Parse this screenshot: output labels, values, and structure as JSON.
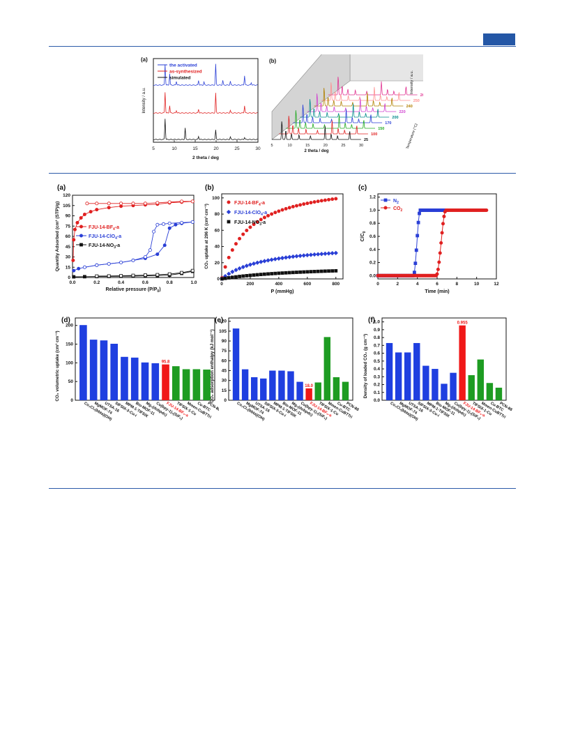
{
  "header": {
    "tag_color": "#2457a6"
  },
  "fig1": {
    "panel_a": {
      "label": "(a)",
      "type": "line",
      "xlabel": "2 theta /  deg",
      "ylabel": "Intensity / a.u.",
      "xlim": [
        5,
        30
      ],
      "xticks": [
        "5",
        "10",
        "15",
        "20",
        "25",
        "30"
      ],
      "series": [
        {
          "name": "the activated",
          "color": "#2a3fd6",
          "peaks": [
            [
              7.8,
              1.0
            ],
            [
              8.9,
              0.55
            ],
            [
              10.5,
              0.18
            ],
            [
              15.8,
              0.22
            ],
            [
              17.1,
              0.15
            ],
            [
              19.9,
              1.0
            ],
            [
              21.6,
              0.22
            ],
            [
              23.4,
              0.18
            ],
            [
              26.8,
              0.45
            ],
            [
              28.4,
              0.12
            ]
          ]
        },
        {
          "name": "as-synthesized",
          "color": "#e02020",
          "peaks": [
            [
              7.8,
              1.0
            ],
            [
              8.9,
              0.35
            ],
            [
              10.5,
              0.12
            ],
            [
              15.8,
              0.18
            ],
            [
              19.9,
              0.95
            ],
            [
              23.4,
              0.12
            ],
            [
              26.8,
              0.35
            ]
          ]
        },
        {
          "name": "simulated",
          "color": "#111111",
          "peaks": [
            [
              7.8,
              1.0
            ],
            [
              12.6,
              0.55
            ],
            [
              15.8,
              0.15
            ],
            [
              19.9,
              0.45
            ],
            [
              23.4,
              0.12
            ],
            [
              26.8,
              0.1
            ]
          ]
        }
      ]
    },
    "panel_b": {
      "label": "(b)",
      "type": "line",
      "xlabel": "2 theta /  deg",
      "ylabel": "Intensity / a.u.",
      "zlabel": "Temperature (°C)",
      "xticks": [
        "5",
        "10",
        "15",
        "20",
        "25",
        "30"
      ],
      "temperatures": [
        "25",
        "100",
        "150",
        "170",
        "200",
        "220",
        "240",
        "250",
        "260"
      ],
      "colors": [
        "#111111",
        "#e02020",
        "#22aa22",
        "#2a3fd6",
        "#008a8a",
        "#d040d0",
        "#b08000",
        "#ff9090",
        "#e03090"
      ]
    }
  },
  "fig2": {
    "panel_a": {
      "label": "(a)",
      "type": "line",
      "xlabel": "Relative pressure (P/P",
      "xlabel_sub": "0",
      "xlabel_end": ")",
      "ylabel": "Quantity Adsorbed (cm³ (STP)/g)",
      "xlim": [
        0,
        1.0
      ],
      "ylim": [
        0,
        120
      ],
      "xticks": [
        "0.0",
        "0.2",
        "0.4",
        "0.6",
        "0.8",
        "1.0"
      ],
      "yticks": [
        "0",
        "15",
        "30",
        "45",
        "60",
        "75",
        "90",
        "105",
        "120"
      ],
      "legend": [
        "FJU-14-BF4-a",
        "FJU-14-ClO4-a",
        "FJU-14-NO3-a"
      ],
      "series": [
        {
          "name": "FJU-14-BF4-a",
          "color": "#e02020",
          "ads": [
            [
              0.005,
              25
            ],
            [
              0.01,
              55
            ],
            [
              0.02,
              70
            ],
            [
              0.04,
              80
            ],
            [
              0.07,
              87
            ],
            [
              0.1,
              92
            ],
            [
              0.15,
              96
            ],
            [
              0.2,
              99
            ],
            [
              0.3,
              102
            ],
            [
              0.4,
              104
            ],
            [
              0.5,
              105
            ],
            [
              0.6,
              106
            ],
            [
              0.7,
              107
            ],
            [
              0.8,
              109
            ],
            [
              0.9,
              110
            ],
            [
              0.99,
              111
            ]
          ],
          "des": [
            [
              0.99,
              111
            ],
            [
              0.9,
              111
            ],
            [
              0.8,
              110
            ],
            [
              0.7,
              109
            ],
            [
              0.6,
              108
            ],
            [
              0.5,
              108
            ],
            [
              0.4,
              108
            ],
            [
              0.3,
              108
            ],
            [
              0.2,
              108
            ],
            [
              0.12,
              108
            ]
          ]
        },
        {
          "name": "FJU-14-ClO4-a",
          "color": "#2a3fd6",
          "ads": [
            [
              0.01,
              10
            ],
            [
              0.05,
              13
            ],
            [
              0.1,
              15
            ],
            [
              0.2,
              18
            ],
            [
              0.3,
              20
            ],
            [
              0.4,
              22
            ],
            [
              0.5,
              25
            ],
            [
              0.6,
              28
            ],
            [
              0.7,
              34
            ],
            [
              0.76,
              47
            ],
            [
              0.8,
              72
            ],
            [
              0.85,
              77
            ],
            [
              0.9,
              79
            ],
            [
              0.99,
              81
            ]
          ],
          "des": [
            [
              0.99,
              81
            ],
            [
              0.9,
              80
            ],
            [
              0.8,
              79
            ],
            [
              0.75,
              78
            ],
            [
              0.7,
              77
            ],
            [
              0.67,
              67
            ],
            [
              0.64,
              40
            ],
            [
              0.6,
              30
            ],
            [
              0.5,
              25
            ],
            [
              0.4,
              22
            ],
            [
              0.3,
              20
            ],
            [
              0.2,
              18
            ],
            [
              0.1,
              15
            ]
          ]
        },
        {
          "name": "FJU-14-NO3-a",
          "color": "#111111",
          "ads": [
            [
              0.01,
              1
            ],
            [
              0.1,
              1.2
            ],
            [
              0.2,
              1.4
            ],
            [
              0.3,
              1.6
            ],
            [
              0.4,
              1.8
            ],
            [
              0.5,
              2
            ],
            [
              0.6,
              2.3
            ],
            [
              0.7,
              2.8
            ],
            [
              0.8,
              3.5
            ],
            [
              0.9,
              6
            ],
            [
              0.99,
              9
            ]
          ],
          "des": [
            [
              0.99,
              10
            ],
            [
              0.9,
              7
            ],
            [
              0.8,
              5
            ],
            [
              0.7,
              4
            ],
            [
              0.6,
              3.5
            ],
            [
              0.5,
              3
            ],
            [
              0.4,
              2.5
            ],
            [
              0.3,
              2.2
            ],
            [
              0.2,
              2
            ]
          ]
        }
      ]
    },
    "panel_b": {
      "label": "(b)",
      "type": "scatter",
      "xlabel": "P (mmHg)",
      "ylabel": "CO₂ uptake at 296 K (cm³ cm⁻³)",
      "xlim": [
        0,
        850
      ],
      "ylim": [
        0,
        105
      ],
      "xticks": [
        "0",
        "200",
        "400",
        "600",
        "800"
      ],
      "yticks": [
        "0",
        "20",
        "40",
        "60",
        "80",
        "100"
      ],
      "legend": [
        "FJU-14-BF4-a",
        "FJU-14-ClO4-a",
        "FJU-14-NO3-a"
      ],
      "series": [
        {
          "name": "FJU-14-BF4-a",
          "color": "#e02020",
          "shape": "circle",
          "k": 99,
          "b": 180
        },
        {
          "name": "FJU-14-ClO4-a",
          "color": "#2a3fd6",
          "shape": "diamond",
          "k": 32,
          "b": 300
        },
        {
          "name": "FJU-14-NO3-a",
          "color": "#111111",
          "shape": "square",
          "k": 10,
          "b": 600
        }
      ]
    },
    "panel_c": {
      "label": "(c)",
      "type": "line",
      "xlabel": "Time (min)",
      "ylabel": "C/C0",
      "xlim": [
        0,
        12
      ],
      "ylim": [
        -0.05,
        1.25
      ],
      "xticks": [
        "0",
        "2",
        "4",
        "6",
        "8",
        "10",
        "12"
      ],
      "yticks": [
        "0.0",
        "0.2",
        "0.4",
        "0.6",
        "0.8",
        "1.0",
        "1.2"
      ],
      "legend": [
        "N2",
        "CO2"
      ],
      "series": [
        {
          "name": "N2",
          "color": "#2a3fd6",
          "start": 3.6,
          "end": 4.3,
          "stop": 7.0
        },
        {
          "name": "CO2",
          "color": "#e02020",
          "start": 5.9,
          "end": 6.9,
          "stop": 11.0
        }
      ]
    },
    "panel_d": {
      "label": "(d)",
      "type": "bar",
      "ylabel": "CO₂ volumetric uptake (cm³ cm⁻³)",
      "ylim": [
        0,
        220
      ],
      "yticks": [
        "0",
        "50",
        "100",
        "150",
        "200"
      ],
      "categories": [
        "Co₂Cl₂(bbta)(OH)",
        "MgMOF-74",
        "UTSA-16",
        "SIFSIX-3-Cu-i",
        "MPM-1-TIFSIX",
        "Bio-MOF-11",
        "Mg₂(dobpdc)",
        "Cu(bpy-1)₂(SiF₆)",
        "FJU-14-BF₄-a",
        "TIFSIX-1-Cu",
        "Mmen-CuBTTri",
        "Cu-BTC",
        "PCN-88"
      ],
      "values": [
        201,
        162,
        160,
        151,
        116,
        114,
        101,
        99,
        95.8,
        91,
        83,
        83,
        82
      ],
      "bar_colors": [
        "#1f3fe0",
        "#1f3fe0",
        "#1f3fe0",
        "#1f3fe0",
        "#1f3fe0",
        "#1f3fe0",
        "#1f3fe0",
        "#1f3fe0",
        "#f01818",
        "#1e9c22",
        "#1e9c22",
        "#1e9c22",
        "#1e9c22"
      ],
      "highlight_label": "95.8"
    },
    "panel_e": {
      "label": "(e)",
      "type": "bar",
      "ylabel": "CO₂ adsorption enthalpy (kJ mol⁻¹)",
      "ylim": [
        0,
        125
      ],
      "yticks": [
        "0",
        "15",
        "30",
        "45",
        "60",
        "75",
        "90",
        "105",
        "120"
      ],
      "categories": [
        "Co₂Cl₂(bbta)(OH)",
        "MgMOF-74",
        "UTSA-16",
        "SIFSIX-3-Cu-i",
        "MPM-1-TIFSIX",
        "Bio-MOF-11",
        "Mg₂(dobpdc)",
        "Cu(bpy-1)₂(SiF₆)",
        "FJU-14-BF₄-a",
        "TIFSIX-1-Cu",
        "Mmen-CuBTTri",
        "Cu-BTC",
        "PCN-88"
      ],
      "values": [
        109,
        47,
        35,
        33,
        45,
        45,
        44,
        28,
        18.0,
        27,
        96,
        35,
        28
      ],
      "bar_colors": [
        "#1f3fe0",
        "#1f3fe0",
        "#1f3fe0",
        "#1f3fe0",
        "#1f3fe0",
        "#1f3fe0",
        "#1f3fe0",
        "#1f3fe0",
        "#f01818",
        "#1e9c22",
        "#1e9c22",
        "#1e9c22",
        "#1e9c22"
      ],
      "highlight_label": "18.0"
    },
    "panel_f": {
      "label": "(f)",
      "type": "bar",
      "ylabel": "Density of  loaded CO₂ (g cm⁻³)",
      "ylim": [
        0,
        1.05
      ],
      "yticks": [
        "0.0",
        "0.1",
        "0.2",
        "0.3",
        "0.4",
        "0.5",
        "0.6",
        "0.7",
        "0.8",
        "0.9",
        "1.0"
      ],
      "categories": [
        "Co₂Cl₂(bbta)(OH)",
        "MgMOF-74",
        "UTSA-16",
        "SIFSIX-3-Cu-i",
        "MPM-1-TIFSIX",
        "Bio-MOF-11",
        "Mg₂(dobpdc)",
        "Cu(bpy-1)₂(SiF₆)",
        "FJU-14-BF₄-a",
        "TIFSIX-1-Cu",
        "Mmen-CuBTTri",
        "Cu-BTC",
        "PCN-88"
      ],
      "values": [
        0.73,
        0.61,
        0.61,
        0.73,
        0.44,
        0.4,
        0.21,
        0.35,
        0.955,
        0.32,
        0.52,
        0.22,
        0.16
      ],
      "bar_colors": [
        "#1f3fe0",
        "#1f3fe0",
        "#1f3fe0",
        "#1f3fe0",
        "#1f3fe0",
        "#1f3fe0",
        "#1f3fe0",
        "#1f3fe0",
        "#f01818",
        "#1e9c22",
        "#1e9c22",
        "#1e9c22",
        "#1e9c22"
      ],
      "highlight_label": "0.955"
    }
  }
}
